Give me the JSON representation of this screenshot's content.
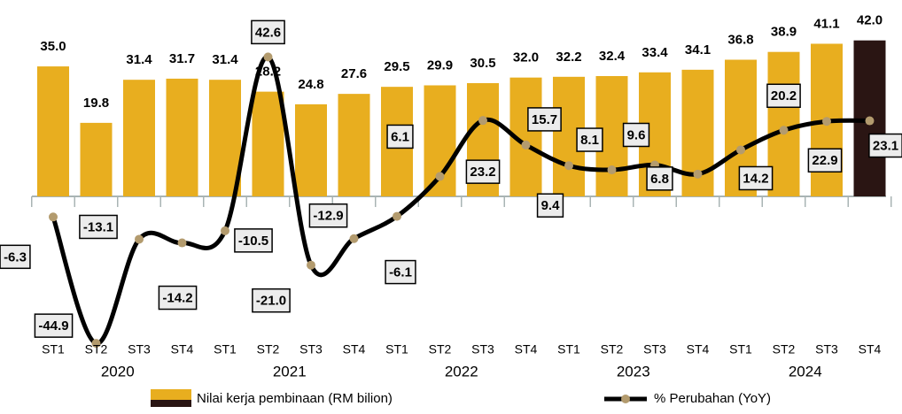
{
  "chart_data": {
    "type": "bar-line",
    "categories": [
      "ST1",
      "ST2",
      "ST3",
      "ST4",
      "ST1",
      "ST2",
      "ST3",
      "ST4",
      "ST1",
      "ST2",
      "ST3",
      "ST4",
      "ST1",
      "ST2",
      "ST3",
      "ST4",
      "ST1",
      "ST2",
      "ST3",
      "ST4"
    ],
    "groups": [
      "2020",
      "2021",
      "2022",
      "2023",
      "2024"
    ],
    "ylim": [
      0,
      50.5
    ],
    "y2lim": [
      -60,
      60
    ],
    "series": [
      {
        "name": "Nilai kerja pembinaan (RM bilion)",
        "type": "bar",
        "color": "#e8ae1f",
        "colors": [
          "#e8ae1f",
          "#e8ae1f",
          "#e8ae1f",
          "#e8ae1f",
          "#e8ae1f",
          "#e8ae1f",
          "#e8ae1f",
          "#e8ae1f",
          "#e8ae1f",
          "#e8ae1f",
          "#e8ae1f",
          "#e8ae1f",
          "#e8ae1f",
          "#e8ae1f",
          "#e8ae1f",
          "#e8ae1f",
          "#e8ae1f",
          "#e8ae1f",
          "#e8ae1f",
          "#2a1513"
        ],
        "values": [
          35.0,
          19.8,
          31.4,
          31.7,
          31.4,
          28.2,
          24.8,
          27.6,
          29.5,
          29.9,
          30.5,
          32.0,
          32.2,
          32.4,
          33.4,
          34.1,
          36.8,
          38.9,
          41.1,
          42.0
        ],
        "value_labels": [
          "35.0",
          "19.8",
          "31.4",
          "31.7",
          "31.4",
          "28.2",
          "24.8",
          "27.6",
          "29.5",
          "29.9",
          "30.5",
          "32.0",
          "32.2",
          "32.4",
          "33.4",
          "34.1",
          "36.8",
          "38.9",
          "41.1",
          "42.0"
        ]
      },
      {
        "name": "% Perubahan (YoY)",
        "type": "line",
        "axis": "y2",
        "color": "#000000",
        "marker_color": "#b39b6e",
        "values": [
          -6.3,
          -44.9,
          -13.1,
          -14.2,
          -10.5,
          42.6,
          -21.0,
          -12.9,
          -6.1,
          6.1,
          23.2,
          15.7,
          9.4,
          8.1,
          9.6,
          6.8,
          14.2,
          20.2,
          22.9,
          23.1
        ],
        "value_labels": [
          "-6.3",
          "-44.9",
          "-13.1",
          "-14.2",
          "-10.5",
          "42.6",
          "-21.0",
          "-12.9",
          "-6.1",
          "6.1",
          "23.2",
          "15.7",
          "9.4",
          "8.1",
          "9.6",
          "6.8",
          "14.2",
          "20.2",
          "22.9",
          "23.1"
        ]
      }
    ]
  }
}
